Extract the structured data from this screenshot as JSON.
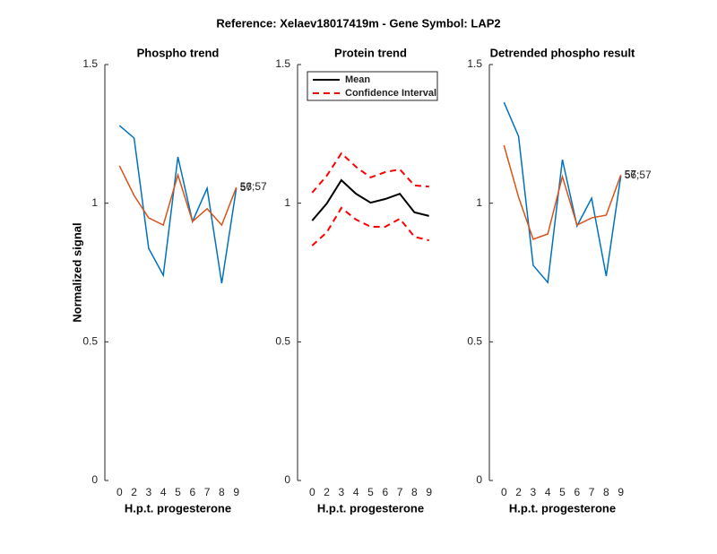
{
  "title": "Reference:  Xelaev18017419m - Gene Symbol:  LAP2",
  "chart_data": [
    {
      "type": "line",
      "title": "Phospho trend",
      "xlabel": "H.p.t. progesterone",
      "ylabel": "Normalized signal",
      "categories": [
        "0",
        "2",
        "3",
        "4",
        "5",
        "6",
        "7",
        "8",
        "9"
      ],
      "ylim": [
        0,
        1.5
      ],
      "yticks": [
        0,
        0.5,
        1,
        1.5
      ],
      "series": [
        {
          "color": "#0072bd",
          "label": "57",
          "values": [
            1.28,
            1.235,
            0.837,
            0.74,
            1.167,
            0.934,
            1.054,
            0.711,
            1.054
          ]
        },
        {
          "color": "#d95319",
          "label": "56;57",
          "values": [
            1.135,
            1.028,
            0.947,
            0.921,
            1.102,
            0.934,
            0.98,
            0.921,
            1.057
          ]
        }
      ]
    },
    {
      "type": "band-line",
      "title": "Protein trend",
      "xlabel": "H.p.t. progesterone",
      "legend": "northwest",
      "categories": [
        "0",
        "2",
        "3",
        "4",
        "5",
        "6",
        "7",
        "8",
        "9"
      ],
      "ylim": [
        0,
        1.5
      ],
      "yticks": [
        0,
        0.5,
        1,
        1.5
      ],
      "series": [
        {
          "name": "Mean",
          "color": "#000000",
          "values": [
            0.937,
            0.999,
            1.083,
            1.034,
            1.002,
            1.015,
            1.034,
            0.967,
            0.954
          ]
        },
        {
          "name": "Confidence Interval",
          "color": "#ff0000",
          "dashed": true,
          "upper": [
            1.038,
            1.099,
            1.18,
            1.131,
            1.093,
            1.112,
            1.122,
            1.064,
            1.06
          ],
          "lower": [
            0.847,
            0.895,
            0.983,
            0.941,
            0.915,
            0.915,
            0.944,
            0.879,
            0.866
          ]
        }
      ]
    },
    {
      "type": "line",
      "title": "Detrended phospho result",
      "xlabel": "H.p.t. progesterone",
      "categories": [
        "0",
        "2",
        "3",
        "4",
        "5",
        "6",
        "7",
        "8",
        "9"
      ],
      "ylim": [
        0,
        1.5
      ],
      "yticks": [
        0,
        0.5,
        1,
        1.5
      ],
      "series": [
        {
          "color": "#0072bd",
          "label": "56;57",
          "values": [
            1.364,
            1.241,
            0.776,
            0.714,
            1.157,
            0.918,
            1.018,
            0.737,
            1.099
          ]
        },
        {
          "color": "#d95319",
          "label": "57",
          "values": [
            1.209,
            1.022,
            0.87,
            0.889,
            1.096,
            0.921,
            0.947,
            0.957,
            1.102
          ]
        }
      ]
    }
  ]
}
